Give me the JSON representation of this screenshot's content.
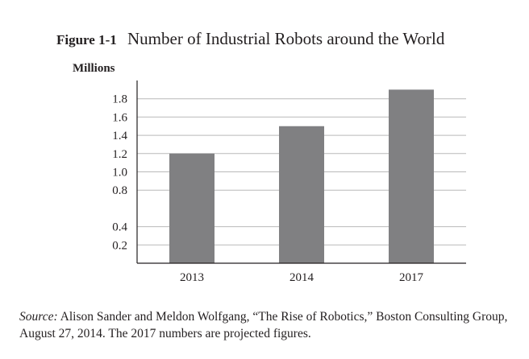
{
  "figure": {
    "label": "Figure 1-1",
    "title": "Number of Industrial Robots around the World"
  },
  "chart_data": {
    "type": "bar",
    "title": "Number of Industrial Robots around the World",
    "ylabel": "Millions",
    "xlabel": "",
    "categories": [
      "2013",
      "2014",
      "2017"
    ],
    "values": [
      1.2,
      1.5,
      1.9
    ],
    "series": [
      {
        "name": "Industrial robots",
        "values": [
          1.2,
          1.5,
          1.9
        ]
      }
    ],
    "ylim": [
      0,
      2.0
    ],
    "yticks": [
      0.2,
      0.4,
      0.8,
      1.0,
      1.2,
      1.4,
      1.6,
      1.8
    ],
    "ytick_labels": [
      "0.2",
      "0.4",
      "0.8",
      "1.0",
      "1.2",
      "1.4",
      "1.6",
      "1.8"
    ],
    "grid": true,
    "bar_color": "#808082",
    "grid_color": "#b9b9b9",
    "axis_color": "#231f20"
  },
  "source": {
    "label": "Source:",
    "text": " Alison Sander and Meldon Wolfgang, “The Rise of Robotics,” Boston Consulting Group, August 27, 2014. The 2017 numbers are projected figures."
  }
}
